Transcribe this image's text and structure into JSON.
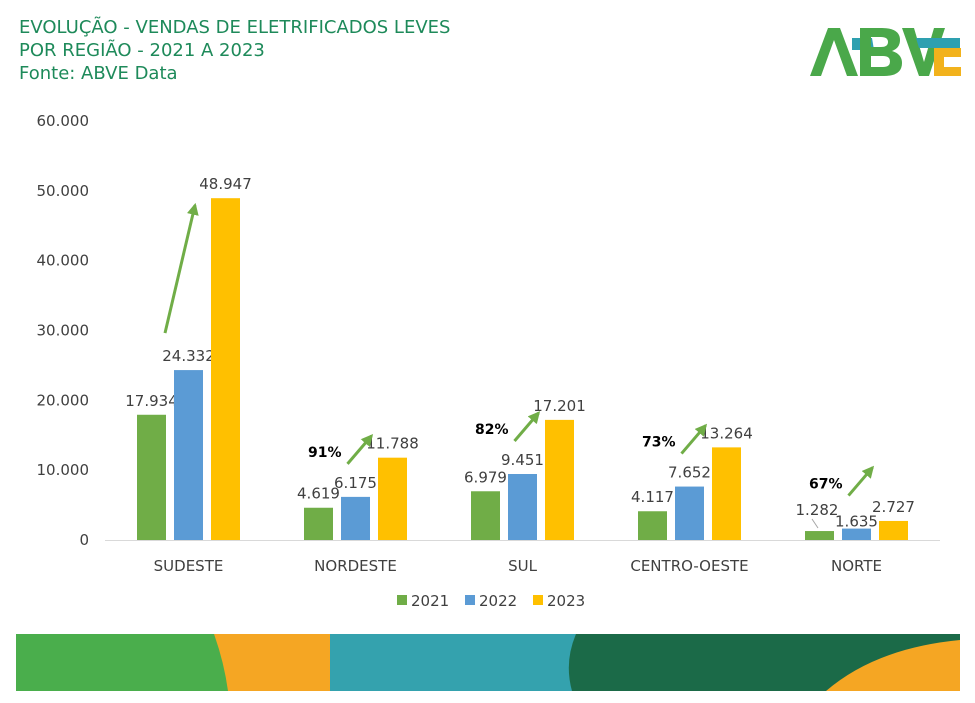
{
  "header": {
    "title_line1": "EVOLUÇÃO - VENDAS DE ELETRIFICADOS LEVES",
    "title_line2": "POR REGIÃO - 2021 A 2023",
    "source": "Fonte: ABVE Data"
  },
  "logo": {
    "text": "ABVE",
    "colors": [
      "#4aa84a",
      "#2ea0b0",
      "#f2b21c"
    ]
  },
  "colors": {
    "title": "#1e8a5a",
    "s2021": "#70ad47",
    "s2022": "#5b9bd5",
    "s2023": "#ffc000",
    "arrow": "#70ad47",
    "band_green": "#4aae4c",
    "band_orange": "#f5a623",
    "band_teal": "#34a2ae",
    "band_dark": "#1b6a48"
  },
  "chart_data": {
    "type": "bar",
    "categories": [
      "SUDESTE",
      "NORDESTE",
      "SUL",
      "CENTRO-OESTE",
      "NORTE"
    ],
    "series": [
      {
        "name": "2021",
        "values": [
          17934,
          4619,
          6979,
          4117,
          1282
        ],
        "labels": [
          "17.934",
          "4.619",
          "6.979",
          "4.117",
          "1.282"
        ]
      },
      {
        "name": "2022",
        "values": [
          24332,
          6175,
          9451,
          7652,
          1635
        ],
        "labels": [
          "24.332",
          "6.175",
          "9.451",
          "7.652",
          "1.635"
        ]
      },
      {
        "name": "2023",
        "values": [
          48947,
          11788,
          17201,
          13264,
          2727
        ],
        "labels": [
          "48.947",
          "11.788",
          "17.201",
          "13.264",
          "2.727"
        ]
      }
    ],
    "ylim": [
      0,
      60000
    ],
    "yticks": [
      0,
      10000,
      20000,
      30000,
      40000,
      50000,
      60000
    ],
    "ytick_labels": [
      "0",
      "10.000",
      "20.000",
      "30.000",
      "40.000",
      "50.000",
      "60.000"
    ],
    "growth_labels": [
      "",
      "91%",
      "82%",
      "73%",
      "67%"
    ],
    "grid": false,
    "legend_position": "bottom"
  }
}
